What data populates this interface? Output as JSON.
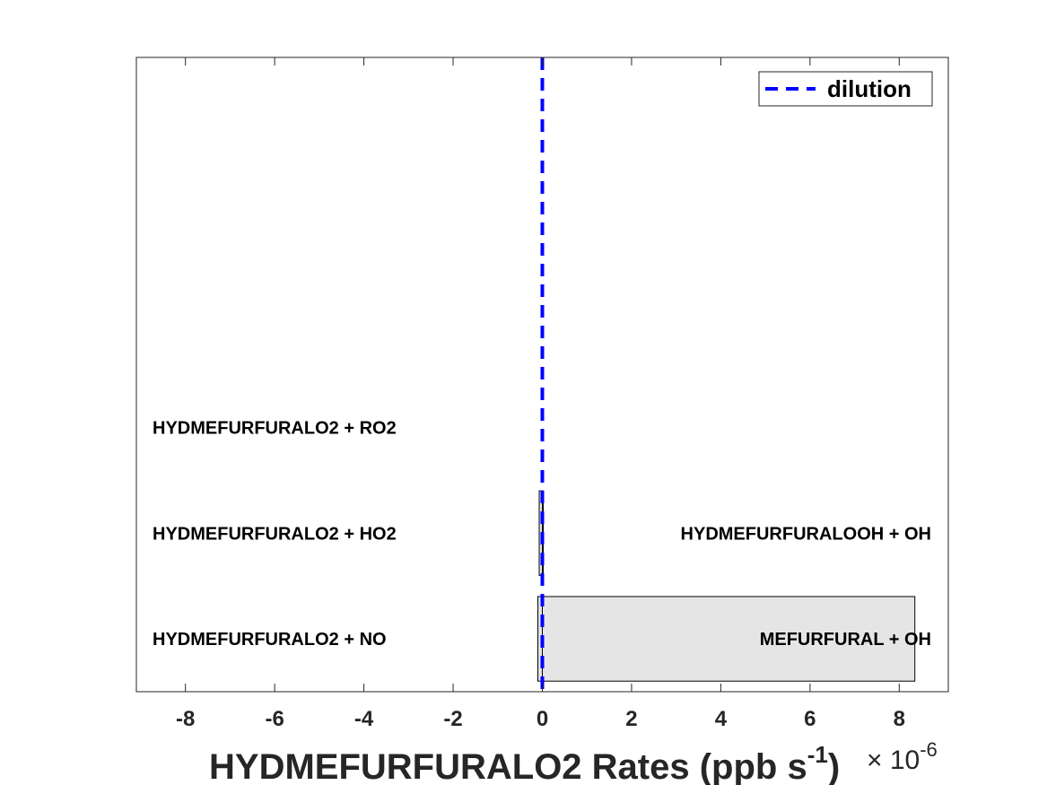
{
  "chart_data": {
    "type": "bar",
    "orientation": "horizontal",
    "xlabel": {
      "main": "HYDMEFURFURALO2 Rates (ppb s",
      "superscript": "-1",
      "close": ")"
    },
    "x_multiplier": {
      "base": "× 10",
      "exponent": "-6"
    },
    "xlim": [
      -9.1,
      9.1
    ],
    "xticks": [
      -8,
      -6,
      -4,
      -2,
      0,
      2,
      4,
      6,
      8
    ],
    "xtick_labels": [
      "-8",
      "-6",
      "-4",
      "-2",
      "0",
      "2",
      "4",
      "6",
      "8"
    ],
    "ylim": [
      0.5,
      6.5
    ],
    "grid": false,
    "legend": {
      "position": "top-right",
      "entries": [
        "dilution"
      ]
    },
    "dilution_line": {
      "x": 0,
      "style": "dashed",
      "color": "#0000ff"
    },
    "bar_fill": "#e5e5e5",
    "bars": [
      {
        "y": 1,
        "loss_label": "HYDMEFURFURALO2 + NO",
        "production_label": "MEFURFURAL + OH",
        "loss": -0.1,
        "production": 8.35
      },
      {
        "y": 2,
        "loss_label": "HYDMEFURFURALO2 + HO2",
        "production_label": "HYDMEFURFURALOOH + OH",
        "loss": -0.07,
        "production": 0.02
      },
      {
        "y": 3,
        "loss_label": "HYDMEFURFURALO2 + RO2",
        "production_label": "",
        "loss": 0,
        "production": 0
      }
    ]
  }
}
